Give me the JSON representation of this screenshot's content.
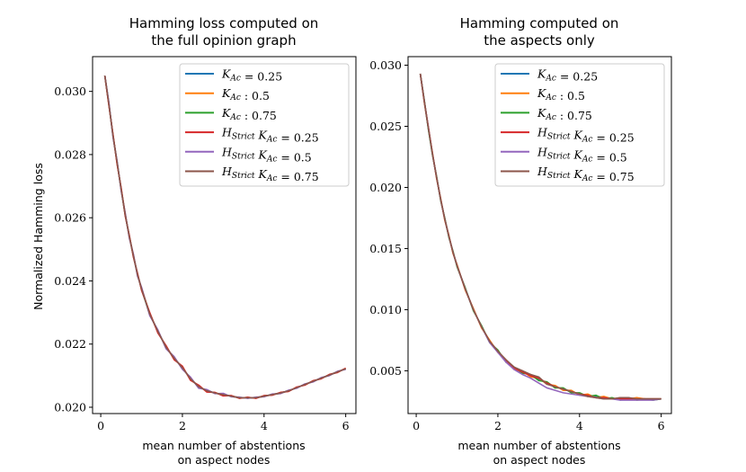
{
  "chart_data": [
    {
      "type": "line",
      "title_lines": [
        "Hamming loss computed on",
        "the full opinion graph"
      ],
      "xlabel_lines": [
        "mean number of abstentions",
        "on aspect nodes"
      ],
      "ylabel": "Normalized Hamming loss",
      "xlim": [
        -0.2,
        6.25
      ],
      "ylim": [
        0.0198,
        0.0311
      ],
      "xticks": [
        0,
        2,
        4,
        6
      ],
      "xtick_labels": [
        "0",
        "2",
        "4",
        "6"
      ],
      "yticks": [
        0.02,
        0.022,
        0.024,
        0.026,
        0.028,
        0.03
      ],
      "ytick_labels": [
        "0.020",
        "0.022",
        "0.024",
        "0.026",
        "0.028",
        "0.030"
      ],
      "grid": false,
      "legend_position": "top-right",
      "x": [
        0.1,
        0.2,
        0.3,
        0.4,
        0.5,
        0.6,
        0.7,
        0.8,
        0.9,
        1.0,
        1.2,
        1.4,
        1.6,
        1.8,
        2.0,
        2.2,
        2.4,
        2.6,
        2.8,
        3.0,
        3.2,
        3.4,
        3.6,
        3.8,
        4.0,
        4.2,
        4.4,
        4.6,
        4.8,
        5.0,
        5.2,
        5.4,
        5.6,
        5.8,
        6.0
      ],
      "series": [
        {
          "name": "K_Ac = 0.25",
          "color": "#1f77b4",
          "values": [
            0.0305,
            0.0296,
            0.0286,
            0.02775,
            0.0269,
            0.0261,
            0.0254,
            0.0248,
            0.0242,
            0.02375,
            0.02295,
            0.0224,
            0.0219,
            0.02155,
            0.02125,
            0.0209,
            0.02065,
            0.02052,
            0.02045,
            0.0204,
            0.02035,
            0.0203,
            0.0203,
            0.0203,
            0.02035,
            0.0204,
            0.02045,
            0.02052,
            0.02062,
            0.02072,
            0.02082,
            0.02092,
            0.02102,
            0.02112,
            0.02122
          ]
        },
        {
          "name": "K_Ac : 0.5",
          "color": "#ff7f0e",
          "values": [
            0.0305,
            0.02958,
            0.02862,
            0.02772,
            0.02692,
            0.02612,
            0.02538,
            0.02482,
            0.02418,
            0.02377,
            0.02297,
            0.02238,
            0.02192,
            0.02153,
            0.02127,
            0.02088,
            0.02067,
            0.0205,
            0.02046,
            0.02038,
            0.02036,
            0.02029,
            0.02031,
            0.02029,
            0.02036,
            0.02039,
            0.02046,
            0.02051,
            0.02063,
            0.02071,
            0.02083,
            0.02091,
            0.02103,
            0.02111,
            0.02123
          ]
        },
        {
          "name": "K_Ac : 0.75",
          "color": "#2ca02c",
          "values": [
            0.0305,
            0.02962,
            0.02858,
            0.02778,
            0.02688,
            0.02608,
            0.02542,
            0.02478,
            0.02422,
            0.02373,
            0.02293,
            0.02242,
            0.02188,
            0.02157,
            0.02123,
            0.02092,
            0.02063,
            0.02054,
            0.02044,
            0.02042,
            0.02034,
            0.02031,
            0.02029,
            0.02031,
            0.02034,
            0.02041,
            0.02044,
            0.02053,
            0.02061,
            0.02073,
            0.02081,
            0.02093,
            0.02101,
            0.02113,
            0.02121
          ]
        },
        {
          "name": "H_Strict K_Ac = 0.25",
          "color": "#d62728",
          "values": [
            0.0305,
            0.02955,
            0.02865,
            0.0277,
            0.02695,
            0.02605,
            0.02545,
            0.02475,
            0.02425,
            0.0237,
            0.023,
            0.02235,
            0.02195,
            0.0215,
            0.0213,
            0.02085,
            0.0207,
            0.02048,
            0.02047,
            0.02036,
            0.02037,
            0.02028,
            0.02032,
            0.02028,
            0.02037,
            0.02038,
            0.02047,
            0.0205,
            0.02064,
            0.0207,
            0.02084,
            0.0209,
            0.02104,
            0.0211,
            0.02124
          ]
        },
        {
          "name": "H_Strict K_Ac = 0.5",
          "color": "#9467bd",
          "values": [
            0.0305,
            0.02965,
            0.02855,
            0.0278,
            0.02685,
            0.02615,
            0.02535,
            0.02485,
            0.02415,
            0.0238,
            0.0229,
            0.02245,
            0.02185,
            0.0216,
            0.0212,
            0.02095,
            0.0206,
            0.02056,
            0.02043,
            0.02044,
            0.02033,
            0.02032,
            0.02028,
            0.02032,
            0.02033,
            0.02042,
            0.02043,
            0.02054,
            0.0206,
            0.02074,
            0.0208,
            0.02094,
            0.021,
            0.02114,
            0.0212
          ]
        },
        {
          "name": "H_Strict K_Ac = 0.75",
          "color": "#8c564b",
          "values": [
            0.0305,
            0.02958,
            0.0286,
            0.02775,
            0.0269,
            0.0261,
            0.0254,
            0.0248,
            0.0242,
            0.02375,
            0.02295,
            0.0224,
            0.0219,
            0.02155,
            0.02125,
            0.0209,
            0.02065,
            0.02052,
            0.02045,
            0.0204,
            0.02035,
            0.0203,
            0.0203,
            0.0203,
            0.02035,
            0.0204,
            0.02045,
            0.02052,
            0.02062,
            0.02072,
            0.02082,
            0.02092,
            0.02102,
            0.02112,
            0.02122
          ]
        }
      ]
    },
    {
      "type": "line",
      "title_lines": [
        "Hamming computed on",
        "the aspects only"
      ],
      "xlabel_lines": [
        "mean number of abstentions",
        "on aspect nodes"
      ],
      "ylabel": "",
      "xlim": [
        -0.2,
        6.25
      ],
      "ylim": [
        0.0015,
        0.0307
      ],
      "xticks": [
        0,
        2,
        4,
        6
      ],
      "xtick_labels": [
        "0",
        "2",
        "4",
        "6"
      ],
      "yticks": [
        0.005,
        0.01,
        0.015,
        0.02,
        0.025,
        0.03
      ],
      "ytick_labels": [
        "0.005",
        "0.010",
        "0.015",
        "0.020",
        "0.025",
        "0.030"
      ],
      "grid": false,
      "legend_position": "top-right",
      "x": [
        0.1,
        0.2,
        0.3,
        0.4,
        0.5,
        0.6,
        0.7,
        0.8,
        0.9,
        1.0,
        1.2,
        1.4,
        1.6,
        1.8,
        2.0,
        2.2,
        2.4,
        2.6,
        2.8,
        3.0,
        3.2,
        3.4,
        3.6,
        3.8,
        4.0,
        4.2,
        4.4,
        4.6,
        4.8,
        5.0,
        5.2,
        5.4,
        5.6,
        5.8,
        6.0
      ],
      "series": [
        {
          "name": "K_Ac = 0.25",
          "color": "#1f77b4",
          "values": [
            0.0293,
            0.027,
            0.0248,
            0.0227,
            0.0208,
            0.019,
            0.0174,
            0.016,
            0.0147,
            0.0136,
            0.0117,
            0.01,
            0.0086,
            0.0074,
            0.0066,
            0.0058,
            0.0052,
            0.0049,
            0.0046,
            0.0043,
            0.004,
            0.0037,
            0.0035,
            0.0033,
            0.0031,
            0.003,
            0.0029,
            0.0028,
            0.0027,
            0.0027,
            0.0027,
            0.0027,
            0.0027,
            0.0027,
            0.0027
          ]
        },
        {
          "name": "K_Ac : 0.5",
          "color": "#ff7f0e",
          "values": [
            0.0293,
            0.0269,
            0.0248,
            0.0228,
            0.0207,
            0.0191,
            0.0173,
            0.0161,
            0.0146,
            0.0137,
            0.0116,
            0.0101,
            0.0085,
            0.0075,
            0.0065,
            0.0059,
            0.0051,
            0.005,
            0.0045,
            0.0044,
            0.0039,
            0.0038,
            0.0034,
            0.0034,
            0.003,
            0.0031,
            0.0028,
            0.0029,
            0.0027,
            0.0028,
            0.0027,
            0.0028,
            0.0027,
            0.0027,
            0.0027
          ]
        },
        {
          "name": "K_Ac : 0.75",
          "color": "#2ca02c",
          "values": [
            0.0293,
            0.0271,
            0.0247,
            0.0226,
            0.0209,
            0.0189,
            0.0175,
            0.0159,
            0.0148,
            0.0135,
            0.0118,
            0.0099,
            0.0087,
            0.0073,
            0.0067,
            0.0057,
            0.0053,
            0.0048,
            0.0047,
            0.0042,
            0.0041,
            0.0036,
            0.0036,
            0.0032,
            0.0032,
            0.0029,
            0.003,
            0.0027,
            0.0028,
            0.0026,
            0.0028,
            0.0026,
            0.0027,
            0.0026,
            0.0027
          ]
        },
        {
          "name": "H_Strict K_Ac = 0.25",
          "color": "#d62728",
          "values": [
            0.0293,
            0.027,
            0.0249,
            0.0227,
            0.0208,
            0.019,
            0.0174,
            0.016,
            0.0147,
            0.0136,
            0.0117,
            0.01,
            0.0086,
            0.0074,
            0.0066,
            0.0058,
            0.0052,
            0.0049,
            0.0046,
            0.0044,
            0.004,
            0.0037,
            0.0035,
            0.0033,
            0.0031,
            0.003,
            0.0028,
            0.0028,
            0.0027,
            0.0027,
            0.0027,
            0.0027,
            0.0027,
            0.0027,
            0.0027
          ]
        },
        {
          "name": "H_Strict K_Ac = 0.5",
          "color": "#9467bd",
          "values": [
            0.0293,
            0.027,
            0.0248,
            0.0227,
            0.0208,
            0.019,
            0.0174,
            0.016,
            0.0147,
            0.0136,
            0.0117,
            0.01,
            0.0086,
            0.0073,
            0.0065,
            0.0057,
            0.0051,
            0.0047,
            0.0044,
            0.004,
            0.0036,
            0.0034,
            0.0032,
            0.0031,
            0.003,
            0.0029,
            0.0028,
            0.0027,
            0.0027,
            0.0026,
            0.0026,
            0.0026,
            0.0026,
            0.0026,
            0.0027
          ]
        },
        {
          "name": "H_Strict K_Ac = 0.75",
          "color": "#8c564b",
          "values": [
            0.0293,
            0.027,
            0.0248,
            0.0227,
            0.0208,
            0.019,
            0.0174,
            0.016,
            0.0147,
            0.0136,
            0.0117,
            0.01,
            0.0086,
            0.0074,
            0.0066,
            0.0059,
            0.0053,
            0.005,
            0.0047,
            0.0045,
            0.0039,
            0.0037,
            0.0035,
            0.0033,
            0.0031,
            0.0029,
            0.0028,
            0.0027,
            0.0027,
            0.0028,
            0.0028,
            0.0027,
            0.0027,
            0.0027,
            0.0027
          ]
        }
      ]
    }
  ]
}
